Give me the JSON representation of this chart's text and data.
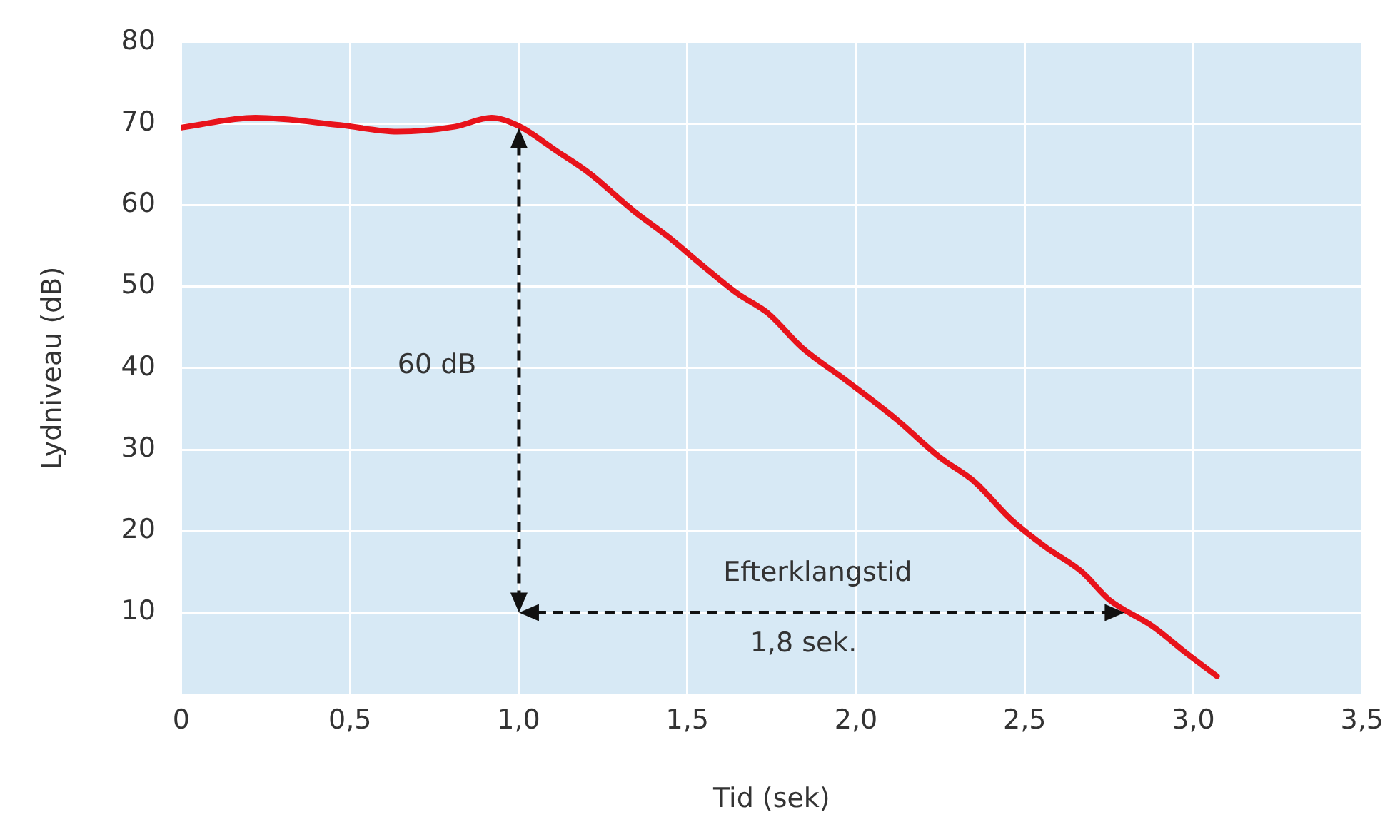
{
  "chart_data": {
    "type": "line",
    "xlabel": "Tid (sek)",
    "ylabel": "Lydniveau (dB)",
    "x": [
      0,
      0.22,
      0.47,
      0.64,
      0.81,
      0.92,
      1.0,
      1.11,
      1.21,
      1.34,
      1.44,
      1.55,
      1.65,
      1.74,
      1.84,
      1.97,
      2.12,
      2.25,
      2.35,
      2.46,
      2.56,
      2.67,
      2.75,
      2.88,
      2.98,
      3.07
    ],
    "series": [
      {
        "color": "#e8131b",
        "values": [
          69.5,
          70.7,
          69.8,
          69.0,
          69.6,
          70.7,
          69.7,
          66.7,
          63.9,
          59.3,
          56.2,
          52.4,
          49.1,
          46.7,
          42.5,
          38.5,
          33.7,
          29.0,
          26.1,
          21.4,
          18.1,
          15.0,
          11.6,
          8.3,
          5.0,
          2.2
        ]
      }
    ],
    "xlim": [
      0,
      3.5
    ],
    "xticks": [
      0,
      {
        "value": 0.5,
        "label": "0,5"
      },
      {
        "value": 1,
        "label": "1,0"
      },
      {
        "value": 1.5,
        "label": "1,5"
      },
      {
        "value": 2,
        "label": "2,0"
      },
      {
        "value": 2.5,
        "label": "2,5"
      },
      {
        "value": 3,
        "label": "3,0"
      },
      {
        "value": 3.5,
        "label": "3,5"
      }
    ],
    "ylim": [
      0,
      80
    ],
    "yticks": [
      10,
      20,
      30,
      40,
      50,
      60,
      70,
      80
    ],
    "grid": true,
    "legend": false,
    "marker": "none",
    "line_style": "solid",
    "annotations": [
      "60 dB",
      "Efterklangstid",
      "1,8 sek."
    ]
  }
}
